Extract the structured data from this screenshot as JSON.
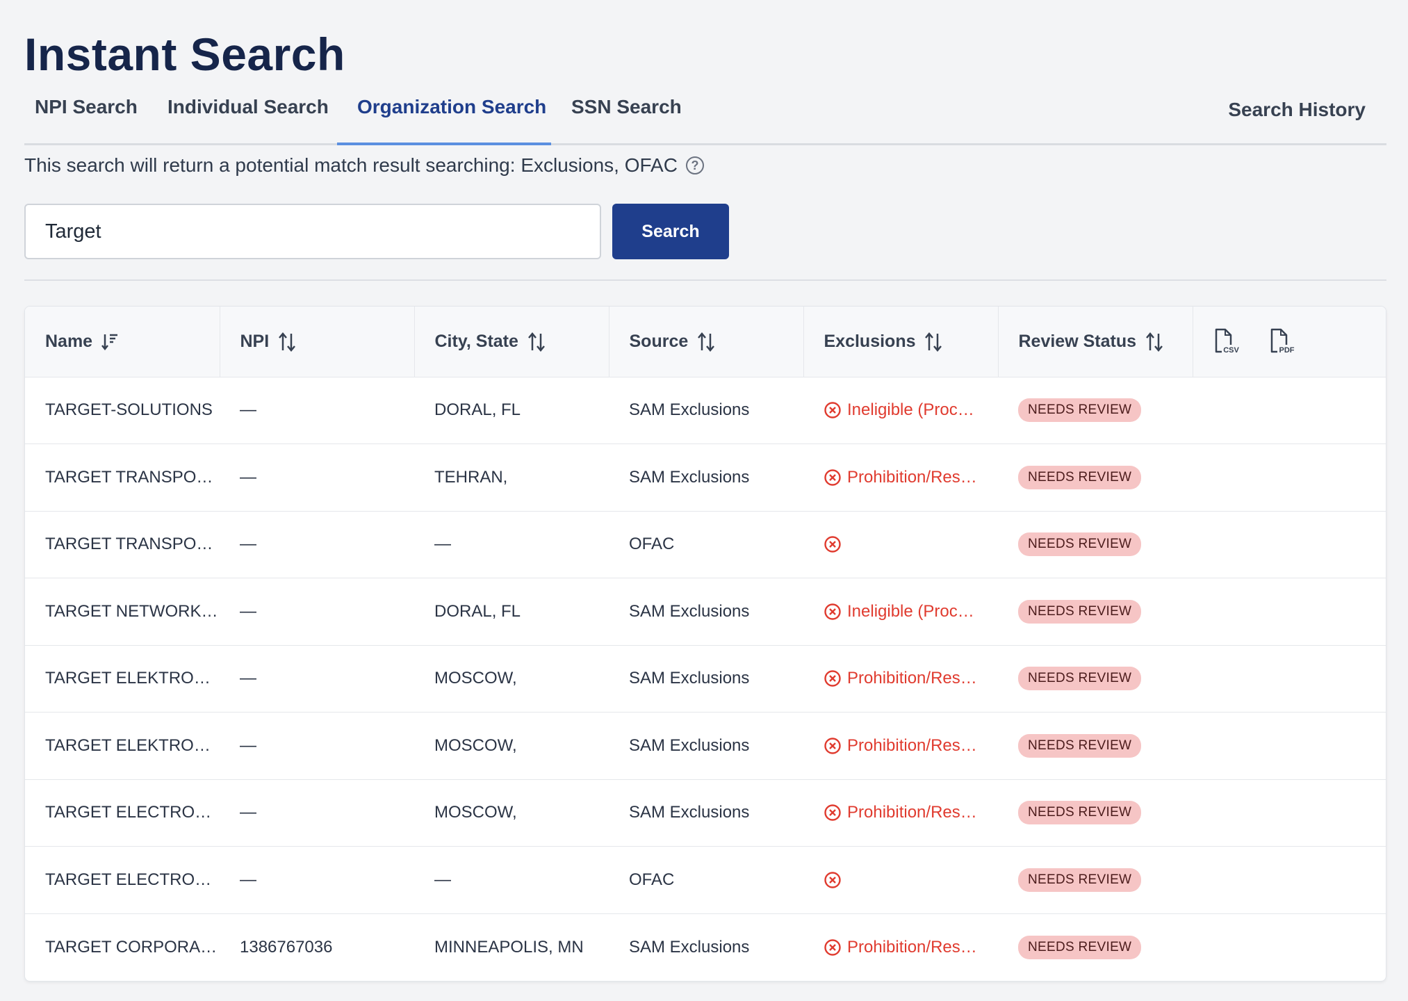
{
  "page": {
    "title": "Instant Search"
  },
  "tabs": [
    {
      "label": "NPI Search"
    },
    {
      "label": "Individual Search"
    },
    {
      "label": "Organization Search"
    },
    {
      "label": "SSN Search"
    }
  ],
  "search_history_label": "Search History",
  "info": {
    "text": "This search will return a potential match result searching: Exclusions, OFAC"
  },
  "search": {
    "value": "Target",
    "button_label": "Search"
  },
  "table": {
    "columns": [
      "Name",
      "NPI",
      "City, State",
      "Source",
      "Exclusions",
      "Review Status"
    ],
    "export_icons": [
      "csv-file-icon",
      "pdf-file-icon"
    ],
    "rows": [
      {
        "name": "TARGET-SOLUTIONS",
        "npi": "—",
        "city_state": "DORAL, FL",
        "source": "SAM Exclusions",
        "exclusion": "Ineligible (Proc…",
        "status": "NEEDS REVIEW"
      },
      {
        "name": "TARGET TRANSPO…",
        "npi": "—",
        "city_state": "TEHRAN,",
        "source": "SAM Exclusions",
        "exclusion": "Prohibition/Res…",
        "status": "NEEDS REVIEW"
      },
      {
        "name": "TARGET TRANSPO…",
        "npi": "—",
        "city_state": "—",
        "source": "OFAC",
        "exclusion": "",
        "status": "NEEDS REVIEW"
      },
      {
        "name": "TARGET NETWORK…",
        "npi": "—",
        "city_state": "DORAL, FL",
        "source": "SAM Exclusions",
        "exclusion": "Ineligible (Proc…",
        "status": "NEEDS REVIEW"
      },
      {
        "name": "TARGET ELEKTRO…",
        "npi": "—",
        "city_state": "MOSCOW,",
        "source": "SAM Exclusions",
        "exclusion": "Prohibition/Res…",
        "status": "NEEDS REVIEW"
      },
      {
        "name": "TARGET ELEKTRO…",
        "npi": "—",
        "city_state": "MOSCOW,",
        "source": "SAM Exclusions",
        "exclusion": "Prohibition/Res…",
        "status": "NEEDS REVIEW"
      },
      {
        "name": "TARGET ELECTRO…",
        "npi": "—",
        "city_state": "MOSCOW,",
        "source": "SAM Exclusions",
        "exclusion": "Prohibition/Res…",
        "status": "NEEDS REVIEW"
      },
      {
        "name": "TARGET ELECTRO…",
        "npi": "—",
        "city_state": "—",
        "source": "OFAC",
        "exclusion": "",
        "status": "NEEDS REVIEW"
      },
      {
        "name": "TARGET CORPORA…",
        "npi": "1386767036",
        "city_state": "MINNEAPOLIS, MN",
        "source": "SAM Exclusions",
        "exclusion": "Prohibition/Res…",
        "status": "NEEDS REVIEW"
      }
    ]
  },
  "colors": {
    "accent": "#1f3e8c",
    "tab_underline": "#5b8fe0",
    "exclusion_red": "#e03b2f",
    "badge_bg": "#f6c5c5"
  }
}
